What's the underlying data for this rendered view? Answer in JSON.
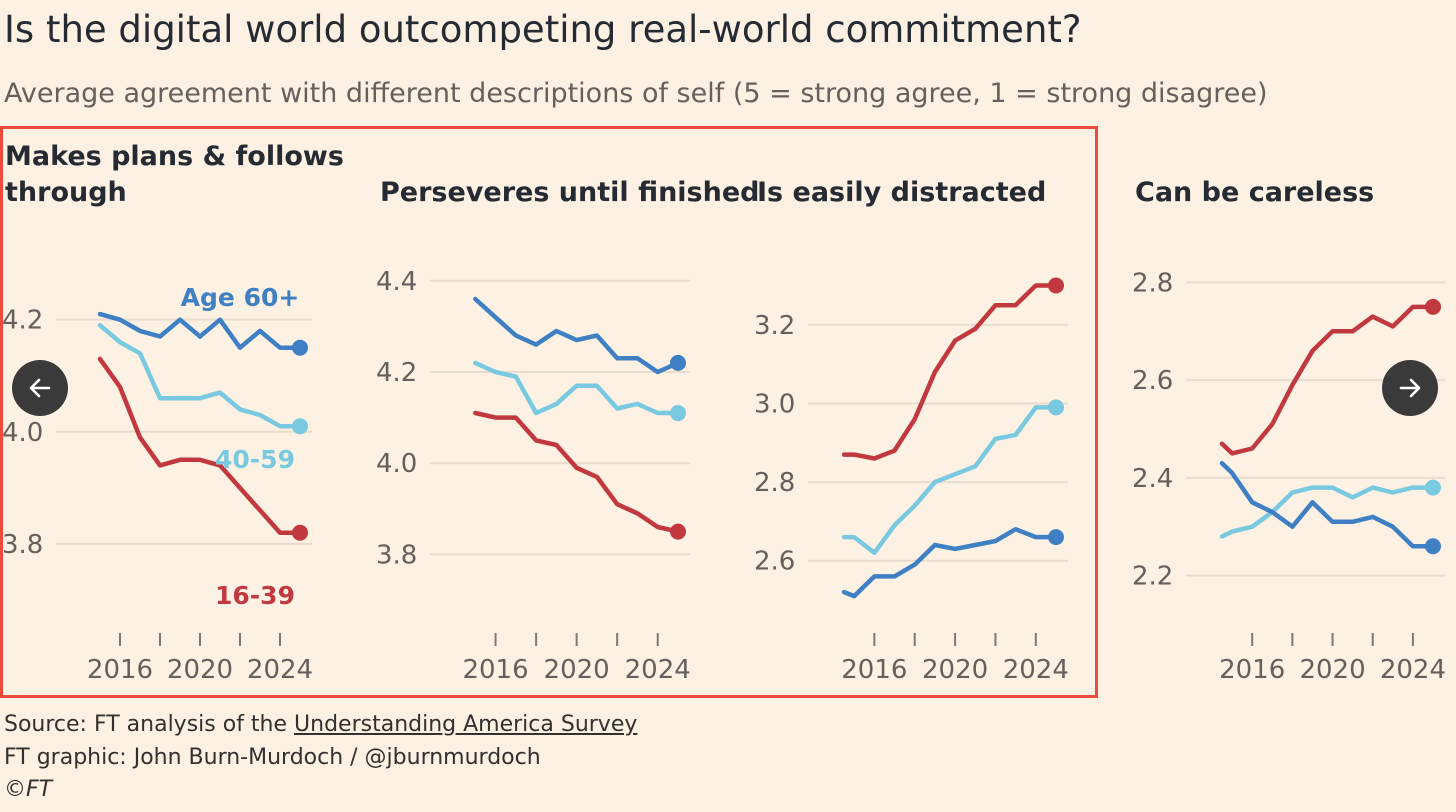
{
  "title": "Is the digital world outcompeting real-world commitment?",
  "subtitle": "Average agreement with different descriptions of self (5 = strong agree, 1 = strong disagree)",
  "colors": {
    "age_60_plus": "#3f80c4",
    "age_40_59": "#79c9e0",
    "age_16_39": "#c1393f",
    "gridline": "#e9dccd",
    "axis_text": "#66605c",
    "highlight": "#f04a3e"
  },
  "nav": {
    "prev_icon": "arrow-left-icon",
    "next_icon": "arrow-right-icon"
  },
  "footer": {
    "source_prefix": "Source: FT analysis of the ",
    "source_link": "Understanding America Survey",
    "credit": "FT graphic: John Burn-Murdoch / @jburnmurdoch",
    "copyright": "©FT"
  },
  "chart_data": [
    {
      "type": "line",
      "title": "Makes plans & follows through",
      "title_lines": [
        "Makes plans & follows",
        "through"
      ],
      "ylim": [
        3.7,
        4.31
      ],
      "xlim": [
        2014,
        2025
      ],
      "yticks": [
        3.8,
        4.0,
        4.2
      ],
      "ytick_labels": [
        "3.8",
        "4.0",
        "4.2"
      ],
      "xticks": [
        2016,
        2018,
        2020,
        2022,
        2024
      ],
      "xtick_labels": [
        "2016",
        "2020",
        "2024"
      ],
      "x": [
        2015,
        2016,
        2017,
        2018,
        2019,
        2020,
        2021,
        2022,
        2023,
        2024,
        2025
      ],
      "series": [
        {
          "name": "Age 60+",
          "color_key": "age_60_plus",
          "values": [
            4.21,
            4.2,
            4.18,
            4.17,
            4.2,
            4.17,
            4.2,
            4.15,
            4.18,
            4.15,
            4.15
          ]
        },
        {
          "name": "40-59",
          "color_key": "age_40_59",
          "values": [
            4.19,
            4.16,
            4.14,
            4.06,
            4.06,
            4.06,
            4.07,
            4.04,
            4.03,
            4.01,
            4.01
          ]
        },
        {
          "name": "16-39",
          "color_key": "age_16_39",
          "values": [
            4.13,
            4.08,
            3.99,
            3.94,
            3.95,
            3.95,
            3.94,
            3.9,
            3.86,
            3.82,
            3.82
          ]
        }
      ],
      "series_labels": [
        {
          "text": "Age 60+",
          "color_key": "age_60_plus"
        },
        {
          "text": "40-59",
          "color_key": "age_40_59"
        },
        {
          "text": "16-39",
          "color_key": "age_16_39"
        }
      ]
    },
    {
      "type": "line",
      "title": "Perseveres until finished",
      "title_lines": [
        "Perseveres until finished"
      ],
      "ylim": [
        3.7,
        4.45
      ],
      "xlim": [
        2014,
        2025
      ],
      "yticks": [
        3.8,
        4.0,
        4.2,
        4.4
      ],
      "ytick_labels": [
        "3.8",
        "4.0",
        "4.2",
        "4.4"
      ],
      "xticks": [
        2016,
        2018,
        2020,
        2022,
        2024
      ],
      "xtick_labels": [
        "2016",
        "2020",
        "2024"
      ],
      "x": [
        2015,
        2016,
        2017,
        2018,
        2019,
        2020,
        2021,
        2022,
        2023,
        2024,
        2025
      ],
      "series": [
        {
          "name": "Age 60+",
          "color_key": "age_60_plus",
          "values": [
            4.36,
            4.32,
            4.28,
            4.26,
            4.29,
            4.27,
            4.28,
            4.23,
            4.23,
            4.2,
            4.22
          ]
        },
        {
          "name": "40-59",
          "color_key": "age_40_59",
          "values": [
            4.22,
            4.2,
            4.19,
            4.11,
            4.13,
            4.17,
            4.17,
            4.12,
            4.13,
            4.11,
            4.11
          ]
        },
        {
          "name": "16-39",
          "color_key": "age_16_39",
          "values": [
            4.11,
            4.1,
            4.1,
            4.05,
            4.04,
            3.99,
            3.97,
            3.91,
            3.89,
            3.86,
            3.85
          ]
        }
      ],
      "series_labels": []
    },
    {
      "type": "line",
      "title": "Is easily distracted",
      "title_lines": [
        "Is easily distracted"
      ],
      "ylim": [
        2.5,
        3.37
      ],
      "xlim": [
        2014,
        2025
      ],
      "yticks": [
        2.6,
        2.8,
        3.0,
        3.2
      ],
      "ytick_labels": [
        "2.6",
        "2.8",
        "3.0",
        "3.2"
      ],
      "xticks": [
        2016,
        2018,
        2020,
        2022,
        2024
      ],
      "xtick_labels": [
        "2016",
        "2020",
        "2024"
      ],
      "x": [
        2014.5,
        2015,
        2016,
        2017,
        2018,
        2019,
        2020,
        2021,
        2022,
        2023,
        2024,
        2025
      ],
      "series": [
        {
          "name": "Age 60+",
          "color_key": "age_60_plus",
          "values": [
            2.52,
            2.51,
            2.56,
            2.56,
            2.59,
            2.64,
            2.63,
            2.64,
            2.65,
            2.68,
            2.66,
            2.66
          ]
        },
        {
          "name": "40-59",
          "color_key": "age_40_59",
          "values": [
            2.66,
            2.66,
            2.62,
            2.69,
            2.74,
            2.8,
            2.82,
            2.84,
            2.91,
            2.92,
            2.99,
            2.99
          ]
        },
        {
          "name": "16-39",
          "color_key": "age_16_39",
          "values": [
            2.87,
            2.87,
            2.86,
            2.88,
            2.96,
            3.08,
            3.16,
            3.19,
            3.25,
            3.25,
            3.3,
            3.3
          ]
        }
      ],
      "series_labels": []
    },
    {
      "type": "line",
      "title": "Can be careless",
      "title_lines": [
        "Can be careless"
      ],
      "ylim": [
        2.15,
        2.85
      ],
      "xlim": [
        2014,
        2025
      ],
      "yticks": [
        2.2,
        2.4,
        2.6,
        2.8
      ],
      "ytick_labels": [
        "2.2",
        "2.4",
        "2.6",
        "2.8"
      ],
      "xticks": [
        2016,
        2018,
        2020,
        2022,
        2024
      ],
      "xtick_labels": [
        "2016",
        "2020",
        "2024"
      ],
      "x": [
        2014.5,
        2015,
        2016,
        2017,
        2018,
        2019,
        2020,
        2021,
        2022,
        2023,
        2024,
        2025
      ],
      "series": [
        {
          "name": "Age 60+",
          "color_key": "age_60_plus",
          "values": [
            2.43,
            2.41,
            2.35,
            2.33,
            2.3,
            2.35,
            2.31,
            2.31,
            2.32,
            2.3,
            2.26,
            2.26
          ]
        },
        {
          "name": "40-59",
          "color_key": "age_40_59",
          "values": [
            2.28,
            2.29,
            2.3,
            2.33,
            2.37,
            2.38,
            2.38,
            2.36,
            2.38,
            2.37,
            2.38,
            2.38
          ]
        },
        {
          "name": "16-39",
          "color_key": "age_16_39",
          "values": [
            2.47,
            2.45,
            2.46,
            2.51,
            2.59,
            2.66,
            2.7,
            2.7,
            2.73,
            2.71,
            2.75,
            2.75
          ]
        }
      ],
      "series_labels": []
    }
  ]
}
